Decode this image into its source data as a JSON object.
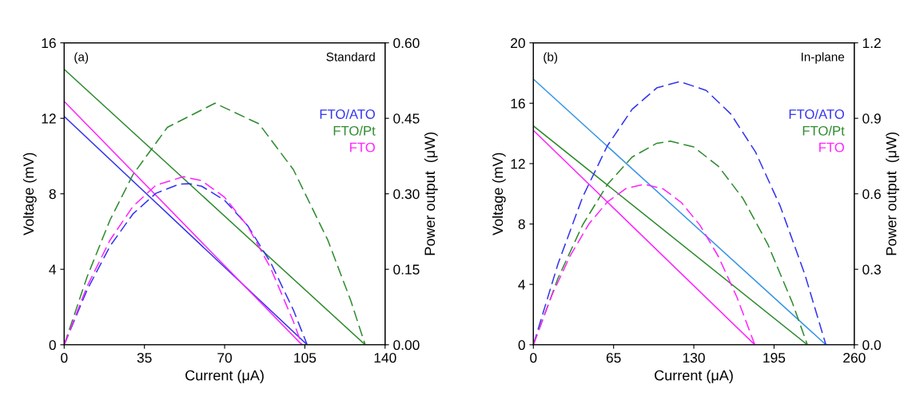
{
  "chart_data": [
    {
      "type": "line",
      "annotations": [
        "(a)",
        "Standard"
      ],
      "xlabel": "Current (μA)",
      "ylabel": "Voltage (mV)",
      "y2label": "Power output  (μW)",
      "xlim": [
        0,
        140
      ],
      "xticks": [
        0,
        35,
        70,
        105,
        140
      ],
      "ylim": [
        0,
        16
      ],
      "yticks": [
        0,
        4,
        8,
        12,
        16
      ],
      "y2lim": [
        0,
        0.6
      ],
      "y2ticks": [
        {
          "value": 0,
          "label": "0.00"
        },
        {
          "value": 0.15,
          "label": "0.15"
        },
        {
          "value": 0.3,
          "label": "0.30"
        },
        {
          "value": 0.45,
          "label": "0.45"
        },
        {
          "value": 0.6,
          "label": "0.60"
        }
      ],
      "grid": false,
      "legend": "right",
      "marker": "none",
      "series": [
        {
          "color": "#3333ee",
          "line_style": "solid",
          "x": [
            0,
            106
          ],
          "values": [
            12.1,
            0
          ]
        },
        {
          "color": "#2e8b2e",
          "line_style": "solid",
          "x": [
            0,
            131.3
          ],
          "values": [
            14.6,
            0
          ]
        },
        {
          "color": "#ff22ff",
          "line_style": "solid",
          "x": [
            0,
            103.7
          ],
          "values": [
            12.9,
            0
          ]
        },
        {
          "name": "FTO/ATO",
          "color": "#3333ee",
          "line_style": "dashed",
          "axis": "y2",
          "x": [
            0,
            10,
            20,
            30,
            40,
            50,
            54.5,
            60,
            70,
            80,
            90,
            100,
            106
          ],
          "values": [
            0,
            0.109,
            0.196,
            0.26,
            0.301,
            0.319,
            0.32,
            0.315,
            0.287,
            0.237,
            0.164,
            0.069,
            0
          ]
        },
        {
          "name": "FTO/Pt",
          "color": "#2e8b2e",
          "line_style": "dashed",
          "axis": "y2",
          "x": [
            0,
            10,
            20,
            30,
            45,
            65.8,
            85,
            100,
            115,
            125,
            131.3
          ],
          "values": [
            0,
            0.135,
            0.248,
            0.338,
            0.432,
            0.48,
            0.439,
            0.348,
            0.208,
            0.088,
            0
          ]
        },
        {
          "name": "FTO",
          "color": "#ff22ff",
          "line_style": "dashed",
          "axis": "y2",
          "x": [
            0,
            10,
            20,
            30,
            40,
            52,
            60,
            70,
            80,
            90,
            100,
            103.7
          ],
          "values": [
            0,
            0.116,
            0.208,
            0.275,
            0.317,
            0.334,
            0.326,
            0.293,
            0.236,
            0.153,
            0.046,
            0
          ]
        }
      ]
    },
    {
      "type": "line",
      "annotations": [
        "(b)",
        "In-plane"
      ],
      "xlabel": "Current (μA)",
      "ylabel": "Voltage (mV)",
      "y2label": "Power output  (μW)",
      "xlim": [
        0,
        260
      ],
      "xticks": [
        0,
        65,
        130,
        195,
        260
      ],
      "ylim": [
        0,
        20
      ],
      "yticks": [
        0,
        4,
        8,
        12,
        16,
        20
      ],
      "y2lim": [
        0,
        1.2
      ],
      "y2ticks": [
        {
          "value": 0,
          "label": "0.0"
        },
        {
          "value": 0.3,
          "label": "0.3"
        },
        {
          "value": 0.6,
          "label": "0.6"
        },
        {
          "value": 0.9,
          "label": "0.9"
        },
        {
          "value": 1.2,
          "label": "1.2"
        }
      ],
      "grid": false,
      "legend": "right",
      "marker": "none",
      "series": [
        {
          "color": "#3a96e6",
          "line_style": "solid",
          "x": [
            0,
            237
          ],
          "values": [
            17.6,
            0
          ]
        },
        {
          "color": "#2e8b2e",
          "line_style": "solid",
          "x": [
            0,
            222
          ],
          "values": [
            14.5,
            0
          ]
        },
        {
          "color": "#ff22ff",
          "line_style": "solid",
          "x": [
            0,
            179.4
          ],
          "values": [
            14.2,
            0
          ]
        },
        {
          "name": "FTO/ATO",
          "color": "#3333ee",
          "line_style": "dashed",
          "axis": "y2",
          "x": [
            0,
            20,
            40,
            60,
            80,
            100,
            118.5,
            140,
            160,
            180,
            200,
            220,
            237
          ],
          "values": [
            0,
            0.322,
            0.588,
            0.791,
            0.936,
            1.021,
            1.046,
            1.011,
            0.917,
            0.766,
            0.551,
            0.279,
            0
          ]
        },
        {
          "name": "FTO/Pt",
          "color": "#2e8b2e",
          "line_style": "dashed",
          "axis": "y2",
          "x": [
            0,
            20,
            40,
            60,
            80,
            100,
            111,
            130,
            150,
            170,
            190,
            210,
            222
          ],
          "values": [
            0,
            0.265,
            0.477,
            0.637,
            0.746,
            0.801,
            0.809,
            0.786,
            0.709,
            0.58,
            0.399,
            0.165,
            0
          ]
        },
        {
          "name": "FTO",
          "color": "#ff22ff",
          "line_style": "dashed",
          "axis": "y2",
          "x": [
            0,
            15,
            30,
            45,
            60,
            75,
            90,
            105,
            120,
            135,
            150,
            165,
            179.4
          ],
          "values": [
            0,
            0.197,
            0.355,
            0.48,
            0.568,
            0.621,
            0.638,
            0.62,
            0.565,
            0.475,
            0.35,
            0.188,
            0
          ]
        }
      ]
    }
  ]
}
